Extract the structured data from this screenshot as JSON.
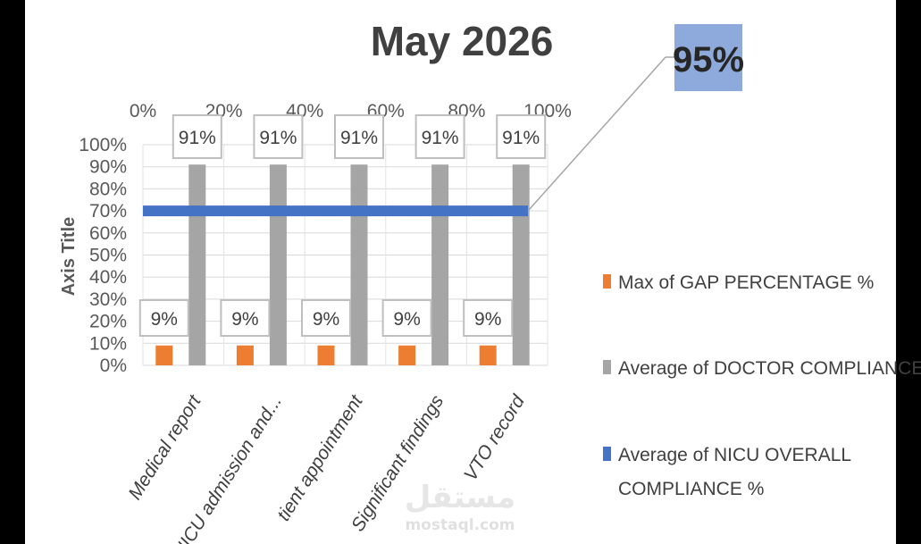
{
  "chart_data": {
    "type": "bar",
    "title": "May 2026",
    "ylabel": "Axis Title",
    "xlabel": "",
    "ylim": [
      0,
      100
    ],
    "y_ticks": [
      "0%",
      "10%",
      "20%",
      "30%",
      "40%",
      "50%",
      "60%",
      "70%",
      "80%",
      "90%",
      "100%"
    ],
    "secondary_x_ticks": [
      "0%",
      "20%",
      "40%",
      "60%",
      "80%",
      "100%"
    ],
    "categories": [
      "Medical report",
      "NICU admission and...",
      "tient appointment",
      "Significant findings",
      "VTO record"
    ],
    "series": [
      {
        "name": "Max of GAP PERCENTAGE %",
        "type": "bar",
        "color": "#ED7D31",
        "values": [
          9,
          9,
          9,
          9,
          9
        ],
        "labels": [
          "9%",
          "9%",
          "9%",
          "9%",
          "9%"
        ]
      },
      {
        "name": "Average of DOCTOR COMPLIANCE",
        "type": "bar",
        "color": "#A5A5A5",
        "values": [
          91,
          91,
          91,
          91,
          91
        ],
        "labels": [
          "91%",
          "91%",
          "91%",
          "91%",
          "91%"
        ]
      },
      {
        "name": "Average of NICU OVERALL COMPLIANCE %",
        "type": "line",
        "color": "#4472C4",
        "values": [
          70,
          70,
          70,
          70,
          70
        ]
      }
    ],
    "legend_position": "right",
    "legend_lines": [
      [
        "Max of GAP PERCENTAGE %"
      ],
      [
        "Average of DOCTOR COMPLIANCE"
      ],
      [
        "Average of NICU OVERALL",
        "COMPLIANCE %"
      ]
    ],
    "callout": {
      "text": "95%",
      "color": "#8EA9DB"
    },
    "grid": true
  },
  "watermark": {
    "arabic": "مستقل",
    "latin": "mostaql.com"
  }
}
